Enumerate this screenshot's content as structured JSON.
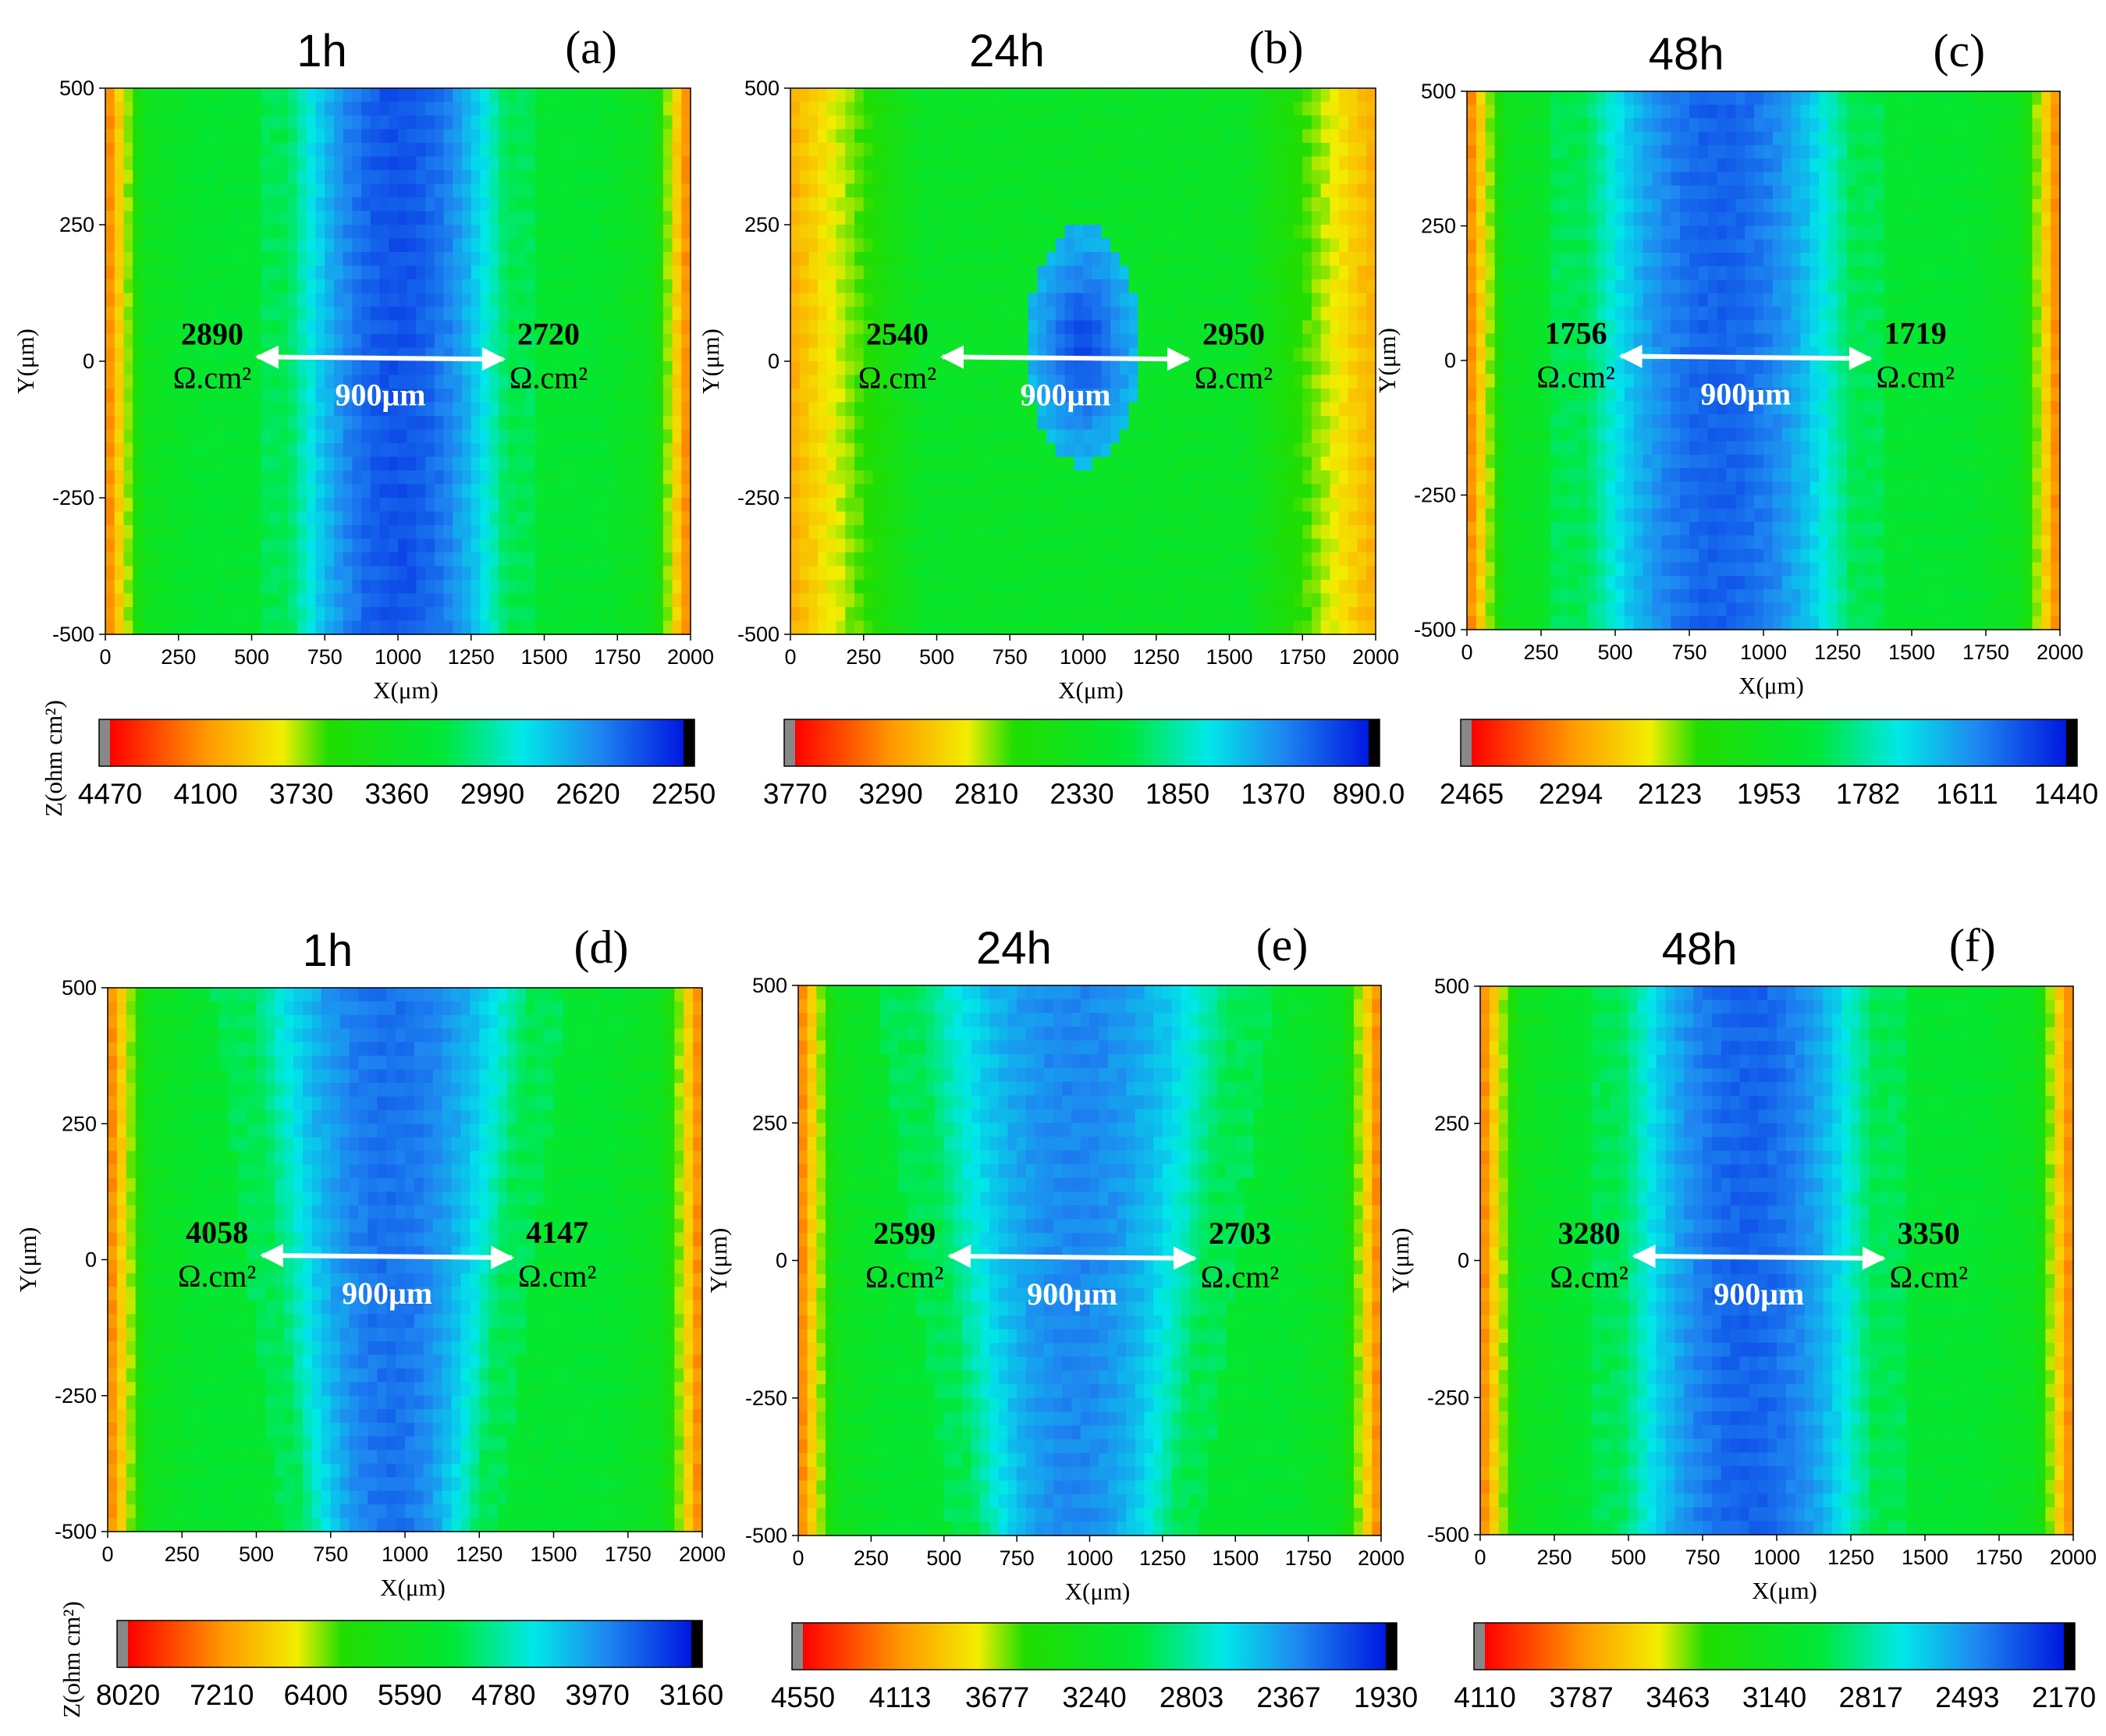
{
  "chart_data": [
    {
      "type": "heatmap",
      "panel": "(a)",
      "title": "1h",
      "xlabel": "X(μm)",
      "ylabel": "Y(μm)",
      "xlim": [
        0,
        2000
      ],
      "ylim": [
        -500,
        500
      ],
      "xticks": [
        "0",
        "250",
        "500",
        "750",
        "1000",
        "1250",
        "1500",
        "1750",
        "2000"
      ],
      "yticks": [
        "500",
        "250",
        "0",
        "-250",
        "-500"
      ],
      "left_label": {
        "value": "2890",
        "unit": "Ω.cm²"
      },
      "right_label": {
        "value": "2720",
        "unit": "Ω.cm²"
      },
      "distance": "900μm",
      "colorbar_ticks": [
        "4470",
        "4100",
        "3730",
        "3360",
        "2990",
        "2620",
        "2250"
      ],
      "colorbar_label": "Z(ohm cm²)",
      "pattern": "band",
      "center_x": 1000,
      "center_width": 750,
      "min_level": 0.92
    },
    {
      "type": "heatmap",
      "panel": "(b)",
      "title": "24h",
      "xlabel": "X(μm)",
      "ylabel": "Y(μm)",
      "xlim": [
        0,
        2000
      ],
      "ylim": [
        -500,
        500
      ],
      "xticks": [
        "0",
        "250",
        "500",
        "750",
        "1000",
        "1250",
        "1500",
        "1750",
        "2000"
      ],
      "yticks": [
        "500",
        "250",
        "0",
        "-250",
        "-500"
      ],
      "left_label": {
        "value": "2540",
        "unit": "Ω.cm²"
      },
      "right_label": {
        "value": "2950",
        "unit": "Ω.cm²"
      },
      "distance": "900μm",
      "colorbar_ticks": [
        "3770",
        "3290",
        "2810",
        "2330",
        "1850",
        "1370",
        "890.0"
      ],
      "colorbar_label": "",
      "pattern": "spot",
      "center_x": 1000,
      "center_width": 360,
      "min_level": 0.95
    },
    {
      "type": "heatmap",
      "panel": "(c)",
      "title": "48h",
      "xlabel": "X(μm)",
      "ylabel": "Y(μm)",
      "xlim": [
        0,
        2000
      ],
      "ylim": [
        -500,
        500
      ],
      "xticks": [
        "0",
        "250",
        "500",
        "750",
        "1000",
        "1250",
        "1500",
        "1750",
        "2000"
      ],
      "yticks": [
        "500",
        "250",
        "0",
        "-250",
        "-500"
      ],
      "left_label": {
        "value": "1756",
        "unit": "Ω.cm²"
      },
      "right_label": {
        "value": "1719",
        "unit": "Ω.cm²"
      },
      "distance": "900μm",
      "colorbar_ticks": [
        "2465",
        "2294",
        "2123",
        "1953",
        "1782",
        "1611",
        "1440"
      ],
      "colorbar_label": "",
      "pattern": "band",
      "center_x": 850,
      "center_width": 900,
      "min_level": 0.9
    },
    {
      "type": "heatmap",
      "panel": "(d)",
      "title": "1h",
      "xlabel": "X(μm)",
      "ylabel": "Y(μm)",
      "xlim": [
        0,
        2000
      ],
      "ylim": [
        -500,
        500
      ],
      "xticks": [
        "0",
        "250",
        "500",
        "750",
        "1000",
        "1250",
        "1500",
        "1750",
        "2000"
      ],
      "yticks": [
        "500",
        "250",
        "0",
        "-250",
        "-500"
      ],
      "left_label": {
        "value": "4058",
        "unit": "Ω.cm²"
      },
      "right_label": {
        "value": "4147",
        "unit": "Ω.cm²"
      },
      "distance": "900μm",
      "colorbar_ticks": [
        "8020",
        "7210",
        "6400",
        "5590",
        "4780",
        "3970",
        "3160"
      ],
      "colorbar_label": "Z(ohm cm²)",
      "pattern": "funnel",
      "center_x": 950,
      "center_width": 950,
      "min_level": 0.88
    },
    {
      "type": "heatmap",
      "panel": "(e)",
      "title": "24h",
      "xlabel": "X(μm)",
      "ylabel": "Y(μm)",
      "xlim": [
        0,
        2000
      ],
      "ylim": [
        -500,
        500
      ],
      "xticks": [
        "0",
        "250",
        "500",
        "750",
        "1000",
        "1250",
        "1500",
        "1750",
        "2000"
      ],
      "yticks": [
        "500",
        "250",
        "0",
        "-250",
        "-500"
      ],
      "left_label": {
        "value": "2599",
        "unit": "Ω.cm²"
      },
      "right_label": {
        "value": "2703",
        "unit": "Ω.cm²"
      },
      "distance": "900μm",
      "colorbar_ticks": [
        "4550",
        "4113",
        "3677",
        "3240",
        "2803",
        "2367",
        "1930"
      ],
      "colorbar_label": "",
      "pattern": "funnel",
      "center_x": 950,
      "center_width": 1100,
      "min_level": 0.85
    },
    {
      "type": "heatmap",
      "panel": "(f)",
      "title": "48h",
      "xlabel": "X(μm)",
      "ylabel": "Y(μm)",
      "xlim": [
        0,
        2000
      ],
      "ylim": [
        -500,
        500
      ],
      "xticks": [
        "0",
        "250",
        "500",
        "750",
        "1000",
        "1250",
        "1500",
        "1750",
        "2000"
      ],
      "yticks": [
        "500",
        "250",
        "0",
        "-250",
        "-500"
      ],
      "left_label": {
        "value": "3280",
        "unit": "Ω.cm²"
      },
      "right_label": {
        "value": "3350",
        "unit": "Ω.cm²"
      },
      "distance": "900μm",
      "colorbar_ticks": [
        "4110",
        "3787",
        "3463",
        "3140",
        "2817",
        "2493",
        "2170"
      ],
      "colorbar_label": "",
      "pattern": "band",
      "center_x": 900,
      "center_width": 850,
      "min_level": 0.9
    }
  ]
}
